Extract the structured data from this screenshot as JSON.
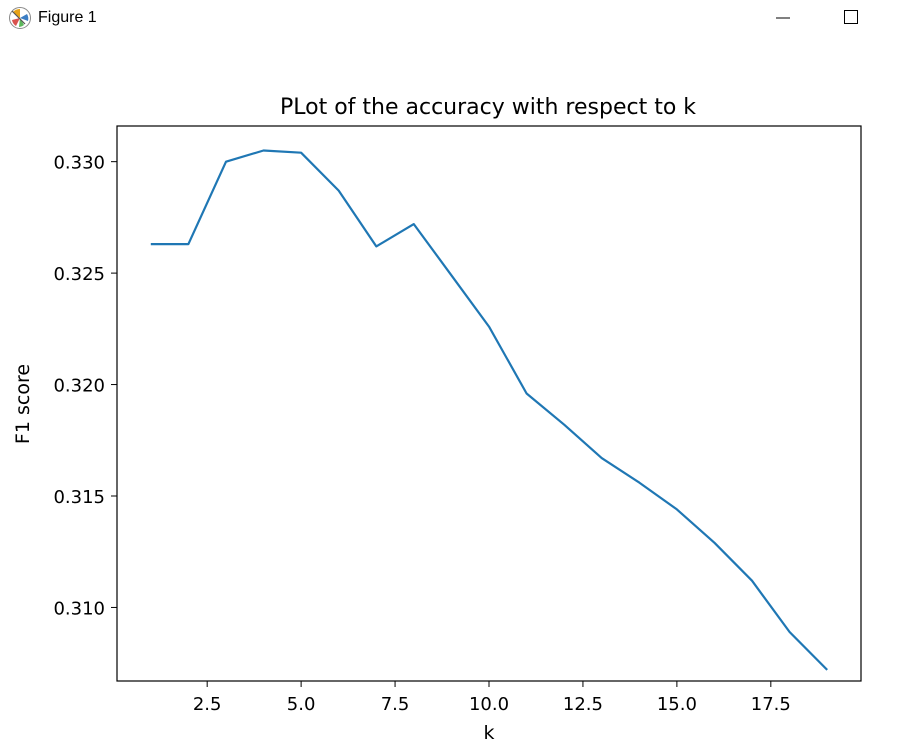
{
  "window": {
    "title": "Figure 1",
    "icon": "matplotlib-figure-icon",
    "controls": [
      "minimize-icon",
      "maximize-icon"
    ]
  },
  "colors": {
    "line": "#1f77b4",
    "axes": "#000000",
    "background": "#ffffff"
  },
  "chart_data": {
    "type": "line",
    "title": "PLot of the accuracy with respect to k",
    "xlabel": "k",
    "ylabel": "F1 score",
    "xlim": [
      0.1,
      19.9
    ],
    "ylim": [
      0.3067,
      0.3316
    ],
    "xticks": [
      2.5,
      5.0,
      7.5,
      10.0,
      12.5,
      15.0,
      17.5
    ],
    "xtick_labels": [
      "2.5",
      "5.0",
      "7.5",
      "10.0",
      "12.5",
      "15.0",
      "17.5"
    ],
    "yticks": [
      0.31,
      0.315,
      0.32,
      0.325,
      0.33
    ],
    "ytick_labels": [
      "0.310",
      "0.315",
      "0.320",
      "0.325",
      "0.330"
    ],
    "grid": false,
    "series": [
      {
        "x": [
          1,
          2,
          3,
          4,
          5,
          6,
          7,
          8,
          9,
          10,
          11,
          12,
          13,
          14,
          15,
          16,
          17,
          18,
          19
        ],
        "values": [
          0.3263,
          0.3263,
          0.33,
          0.3305,
          0.3304,
          0.3287,
          0.3262,
          0.3272,
          0.3249,
          0.3226,
          0.3196,
          0.3182,
          0.3167,
          0.3156,
          0.3144,
          0.3129,
          0.3112,
          0.3089,
          0.3072
        ]
      }
    ]
  }
}
